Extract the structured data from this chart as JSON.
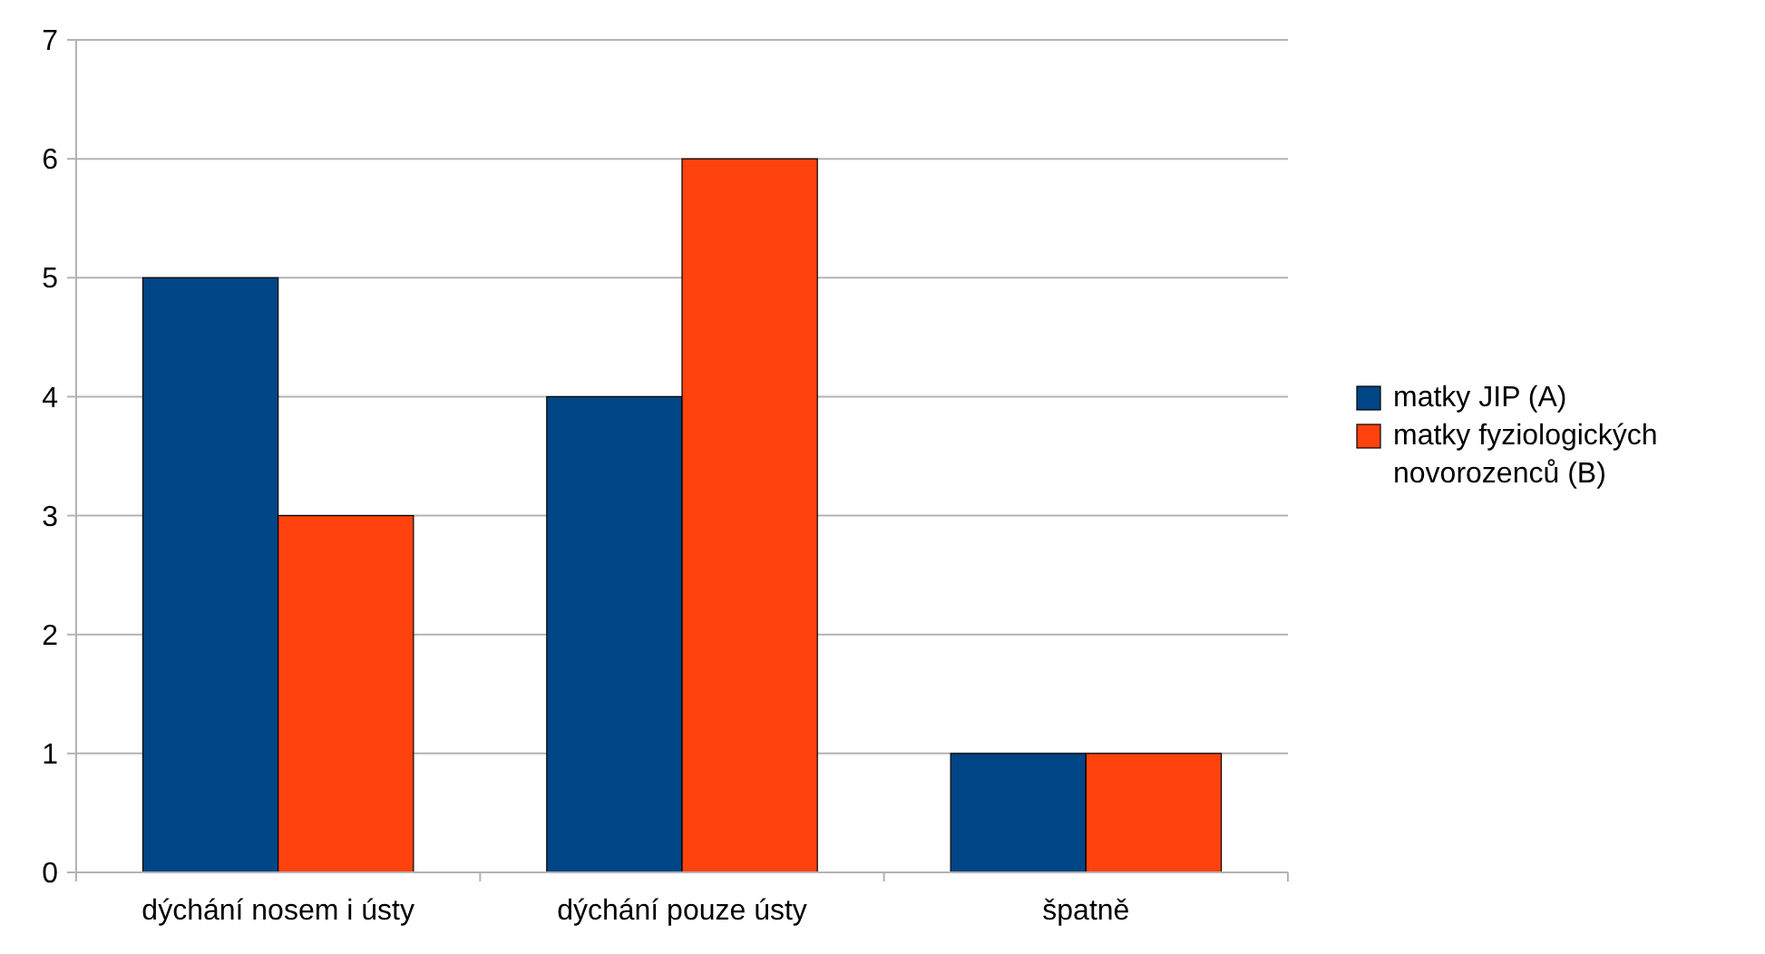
{
  "chart_data": {
    "type": "bar",
    "categories": [
      "dýchání nosem i ústy",
      "dýchání pouze ústy",
      "špatně"
    ],
    "series": [
      {
        "name": "matky JIP (A)",
        "color": "#004586",
        "values": [
          5,
          4,
          1
        ]
      },
      {
        "name": "matky fyziologických novorozenců (B)",
        "color": "#ff420e",
        "values": [
          3,
          6,
          1
        ]
      }
    ],
    "ylim": [
      0,
      7
    ],
    "yticks": [
      0,
      1,
      2,
      3,
      4,
      5,
      6,
      7
    ],
    "grid": "y",
    "legend": "right"
  }
}
